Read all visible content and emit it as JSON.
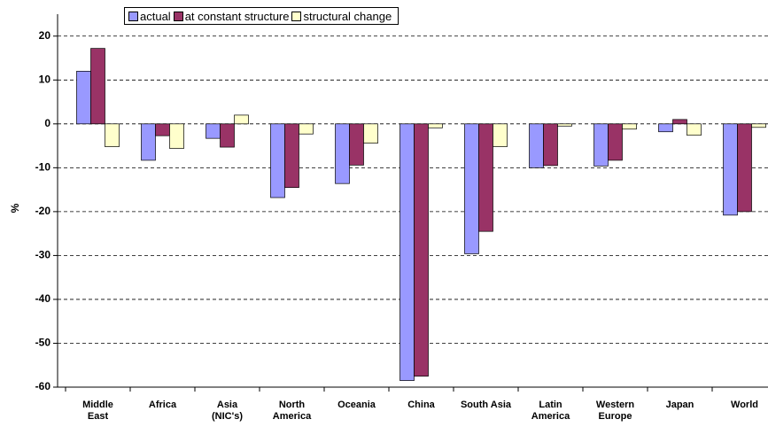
{
  "chart_data": {
    "type": "bar",
    "y_label": "%",
    "categories": [
      "Middle East",
      "Africa",
      "Asia (NIC's)",
      "North America",
      "Oceania",
      "China",
      "South Asia",
      "Latin America",
      "Western Europe",
      "Japan",
      "World"
    ],
    "series": [
      {
        "name": "actual",
        "color": "#9999ff",
        "values": [
          12,
          -8.3,
          -3.3,
          -16.8,
          -13.6,
          -58.5,
          -29.6,
          -10,
          -9.6,
          -1.8,
          -20.8
        ]
      },
      {
        "name": "at constant structure",
        "color": "#993366",
        "values": [
          17.2,
          -2.7,
          -5.3,
          -14.5,
          -9.4,
          -57.5,
          -24.5,
          -9.5,
          -8.3,
          1.0,
          -20
        ]
      },
      {
        "name": "structural change",
        "color": "#ffffcc",
        "values": [
          -5.2,
          -5.6,
          2.0,
          -2.3,
          -4.4,
          -0.9,
          -5.2,
          -0.5,
          -1.2,
          -2.6,
          -0.8
        ]
      }
    ],
    "ylim": [
      -60,
      25
    ],
    "yticks": [
      -60,
      -50,
      -40,
      -30,
      -20,
      -10,
      0,
      10,
      20
    ],
    "grid": true,
    "legend": "top"
  }
}
